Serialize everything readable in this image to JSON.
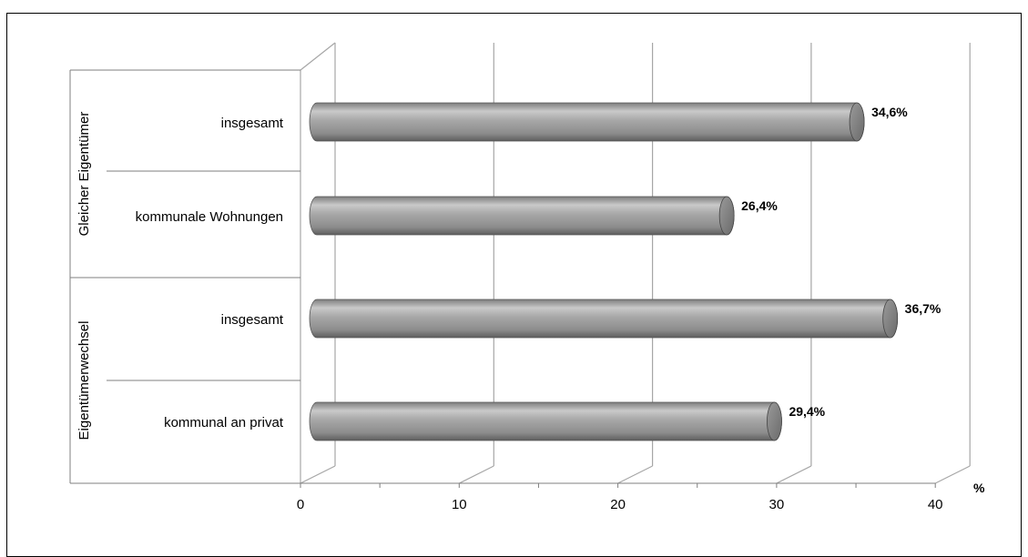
{
  "title": "",
  "chart_data": {
    "type": "bar",
    "orientation": "horizontal",
    "groups": [
      {
        "label": "Gleicher Eigentümer",
        "categories": [
          "insgesamt",
          "kommunale Wohnungen"
        ]
      },
      {
        "label": "Eigentümerwechsel",
        "categories": [
          "insgesamt",
          "kommunal an privat"
        ]
      }
    ],
    "categories": [
      "insgesamt",
      "kommunale Wohnungen",
      "insgesamt",
      "kommunal an privat"
    ],
    "values": [
      34.6,
      26.4,
      36.7,
      29.4
    ],
    "data_labels": [
      "34,6%",
      "26,4%",
      "36,7%",
      "29,4%"
    ],
    "xlabel": "%",
    "ylabel": "",
    "xlim": [
      0,
      40
    ],
    "x_ticks": [
      "0",
      "10",
      "20",
      "30",
      "40"
    ],
    "grid": true,
    "legend": "none",
    "bar_color": "#9a9a9a",
    "grid_color": "#a6a6a6"
  }
}
